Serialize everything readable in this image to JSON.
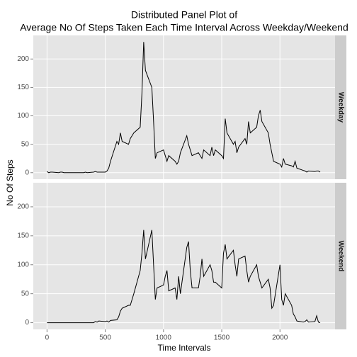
{
  "chart_data": {
    "type": "line",
    "title": [
      "Distributed Panel Plot of",
      "Average No Of Steps Taken Each Time Interval Across Weekday/Weekend"
    ],
    "xlabel": "Time Intervals",
    "ylabel": "No Of Steps",
    "xlim": [
      -117.75,
      2472.75
    ],
    "ylim": [
      -11.5,
      241.5
    ],
    "xticks": [
      0,
      500,
      1000,
      1500,
      2000
    ],
    "yticks": [
      0,
      50,
      100,
      150,
      200
    ],
    "grid": true,
    "x": [
      0,
      15,
      30,
      45,
      100,
      115,
      130,
      145,
      200,
      215,
      230,
      245,
      300,
      315,
      330,
      345,
      400,
      415,
      430,
      445,
      500,
      515,
      530,
      545,
      600,
      615,
      630,
      645,
      700,
      715,
      730,
      745,
      800,
      815,
      830,
      845,
      900,
      915,
      930,
      945,
      1000,
      1015,
      1030,
      1045,
      1100,
      1115,
      1130,
      1145,
      1200,
      1215,
      1230,
      1245,
      1300,
      1315,
      1330,
      1345,
      1400,
      1415,
      1430,
      1445,
      1500,
      1515,
      1530,
      1545,
      1600,
      1615,
      1630,
      1645,
      1700,
      1715,
      1730,
      1745,
      1800,
      1815,
      1830,
      1845,
      1900,
      1915,
      1930,
      1945,
      2000,
      2015,
      2030,
      2045,
      2100,
      2115,
      2130,
      2145,
      2200,
      2215,
      2230,
      2245,
      2300,
      2315,
      2330,
      2345
    ],
    "series": [
      {
        "name": "Weekday",
        "color": "#000000",
        "values": [
          2,
          0,
          1,
          1,
          0,
          1,
          1,
          0,
          0,
          0,
          0,
          0,
          0,
          0,
          1,
          0,
          1,
          2,
          1,
          1,
          1,
          3,
          8,
          20,
          55,
          50,
          70,
          55,
          50,
          60,
          65,
          70,
          80,
          140,
          230,
          180,
          150,
          90,
          25,
          35,
          40,
          30,
          20,
          30,
          20,
          15,
          20,
          35,
          65,
          50,
          40,
          30,
          35,
          30,
          25,
          40,
          30,
          45,
          30,
          40,
          30,
          25,
          95,
          70,
          50,
          55,
          35,
          45,
          60,
          50,
          90,
          70,
          80,
          100,
          110,
          90,
          70,
          50,
          35,
          20,
          15,
          10,
          25,
          15,
          12,
          10,
          20,
          8,
          4,
          3,
          1,
          3,
          2,
          3,
          3,
          1
        ]
      },
      {
        "name": "Weekend",
        "color": "#000000",
        "values": [
          0,
          0,
          0,
          0,
          0,
          0,
          0,
          0,
          0,
          0,
          0,
          0,
          0,
          0,
          0,
          0,
          0,
          2,
          1,
          3,
          2,
          3,
          1,
          4,
          5,
          10,
          20,
          25,
          30,
          30,
          40,
          50,
          90,
          120,
          160,
          110,
          160,
          100,
          40,
          60,
          65,
          80,
          90,
          55,
          60,
          40,
          80,
          50,
          130,
          140,
          90,
          60,
          60,
          80,
          110,
          80,
          100,
          90,
          70,
          70,
          60,
          120,
          135,
          110,
          125,
          100,
          80,
          110,
          115,
          90,
          70,
          80,
          100,
          80,
          70,
          60,
          75,
          60,
          25,
          30,
          100,
          40,
          30,
          50,
          30,
          15,
          10,
          3,
          1,
          2,
          5,
          1,
          2,
          12,
          1,
          0
        ]
      }
    ]
  }
}
